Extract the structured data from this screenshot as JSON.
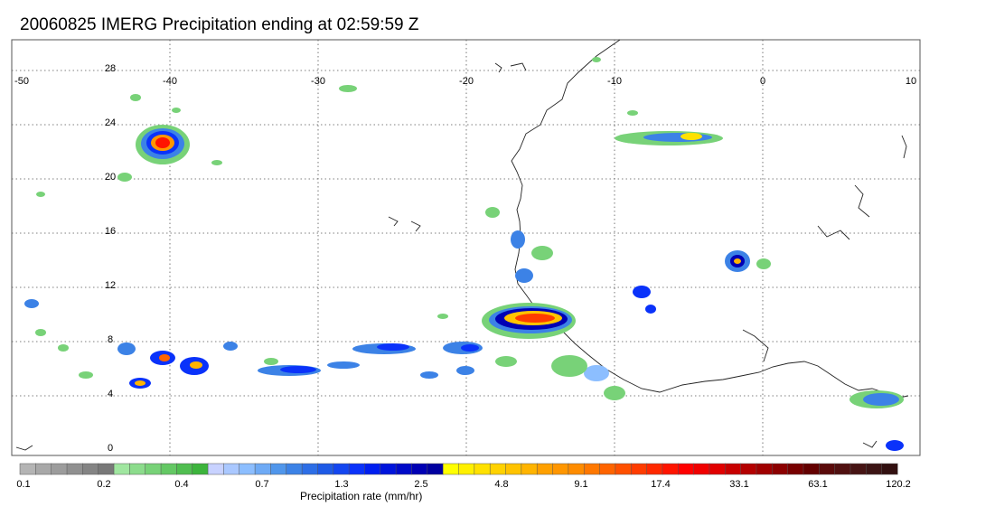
{
  "title": "20060825 IMERG Precipitation ending at 02:59:59 Z",
  "map": {
    "lon_ticks": [
      "-50",
      "-40",
      "-30",
      "-20",
      "-10",
      "0",
      "10"
    ],
    "lat_ticks": [
      "28",
      "24",
      "20",
      "16",
      "12",
      "8",
      "4",
      "0"
    ]
  },
  "colorbar": {
    "label": "Precipitation rate (mm/hr)",
    "tick_labels": [
      "0.1",
      "0.2",
      "0.4",
      "0.7",
      "1.3",
      "2.5",
      "4.8",
      "9.1",
      "17.4",
      "33.1",
      "63.1",
      "120.2"
    ],
    "colors": [
      "#b4b4b4",
      "#a8a8a8",
      "#9c9c9c",
      "#909090",
      "#848484",
      "#787878",
      "#a0e6a0",
      "#8cdc8c",
      "#78d278",
      "#64c864",
      "#50be50",
      "#3cb43c",
      "#c8d2ff",
      "#aac8ff",
      "#8cbeff",
      "#6eaaf5",
      "#5096eb",
      "#3c82e6",
      "#2d6ee6",
      "#1e5ae6",
      "#1446f0",
      "#0a32fa",
      "#001ef0",
      "#0014dc",
      "#000ac8",
      "#0000b4",
      "#0000a0",
      "#ffff00",
      "#fff000",
      "#ffe100",
      "#ffd200",
      "#ffc300",
      "#ffb400",
      "#ffa000",
      "#ff9600",
      "#ff8c00",
      "#ff7800",
      "#ff6400",
      "#ff5000",
      "#ff3c00",
      "#ff2800",
      "#ff1400",
      "#ff0000",
      "#f00000",
      "#e10000",
      "#c80000",
      "#b40000",
      "#a00000",
      "#8c0000",
      "#780000",
      "#640000",
      "#5a0a0a",
      "#501010",
      "#461414",
      "#3c1414",
      "#321010"
    ]
  }
}
